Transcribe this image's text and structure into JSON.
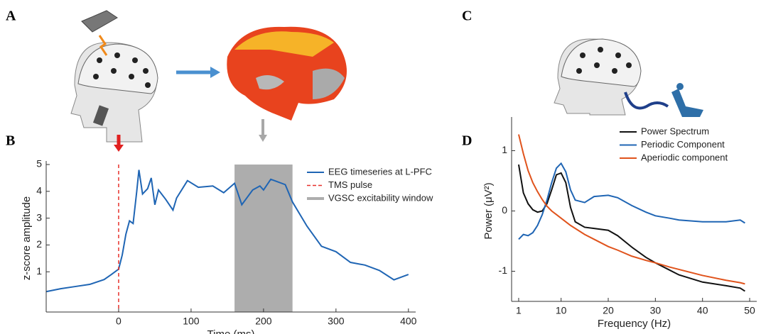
{
  "panel_labels": [
    "A",
    "B",
    "C",
    "D"
  ],
  "chart_data": [
    {
      "type": "line",
      "xlabel": "Time (ms)",
      "ylabel": "z-score amplitude",
      "xlim": [
        -100,
        410
      ],
      "ylim": [
        -0.5,
        5
      ],
      "xticks": [
        0,
        100,
        200,
        300,
        400
      ],
      "yticks": [
        1,
        2,
        3,
        4,
        5
      ],
      "x": [
        -100,
        -80,
        -60,
        -40,
        -20,
        -10,
        0,
        5,
        10,
        15,
        20,
        25,
        28,
        33,
        40,
        45,
        50,
        55,
        65,
        75,
        80,
        95,
        110,
        130,
        145,
        160,
        170,
        185,
        195,
        200,
        210,
        230,
        240,
        260,
        280,
        300,
        320,
        340,
        360,
        380,
        390,
        400
      ],
      "series": [
        {
          "name": "EEG timeseries at L-PFC",
          "color": "#1f65b4",
          "values": [
            0.26,
            0.37,
            0.45,
            0.53,
            0.71,
            0.9,
            1.1,
            1.63,
            2.4,
            2.9,
            2.8,
            4.0,
            4.8,
            3.9,
            4.1,
            4.5,
            3.5,
            4.05,
            3.7,
            3.3,
            3.75,
            4.4,
            4.15,
            4.2,
            3.95,
            4.3,
            3.5,
            4.05,
            4.2,
            4.05,
            4.45,
            4.25,
            3.6,
            2.7,
            1.95,
            1.75,
            1.35,
            1.25,
            1.05,
            0.7,
            0.8,
            0.9
          ]
        }
      ],
      "pulse": {
        "name": "TMS pulse",
        "x": 0,
        "color": "#e8302a"
      },
      "window": {
        "name": "VGSC excitability window",
        "x": [
          160,
          240
        ],
        "color": "#adadad"
      }
    },
    {
      "type": "line",
      "xlabel": "Frequency (Hz)",
      "ylabel": "Power (μV²)",
      "xlim": [
        -0.5,
        51.5
      ],
      "ylim": [
        -1.5,
        1.5
      ],
      "xticks": [
        1,
        10,
        20,
        30,
        40,
        50
      ],
      "yticks": [
        -1,
        0,
        1
      ],
      "x": [
        1,
        2,
        3,
        4,
        5,
        6,
        7,
        8,
        9,
        10,
        11,
        12,
        13,
        15,
        17,
        20,
        22,
        25,
        28,
        30,
        33,
        35,
        40,
        45,
        48,
        49
      ],
      "series": [
        {
          "name": "Power Spectrum",
          "color": "#111111",
          "values": [
            0.77,
            0.3,
            0.12,
            0.02,
            -0.02,
            0,
            0.12,
            0.35,
            0.6,
            0.63,
            0.47,
            0.06,
            -0.18,
            -0.27,
            -0.29,
            -0.32,
            -0.41,
            -0.6,
            -0.77,
            -0.86,
            -0.98,
            -1.06,
            -1.18,
            -1.24,
            -1.28,
            -1.33
          ]
        },
        {
          "name": "Periodic Component",
          "color": "#1f65b4",
          "values": [
            -0.47,
            -0.39,
            -0.41,
            -0.36,
            -0.24,
            -0.06,
            0.18,
            0.47,
            0.71,
            0.79,
            0.65,
            0.35,
            0.18,
            0.14,
            0.24,
            0.26,
            0.22,
            0.09,
            -0.02,
            -0.08,
            -0.12,
            -0.15,
            -0.18,
            -0.18,
            -0.15,
            -0.2
          ]
        },
        {
          "name": "Aperiodic component",
          "color": "#e0531c",
          "values": [
            1.27,
            0.95,
            0.67,
            0.47,
            0.32,
            0.19,
            0.08,
            0,
            -0.06,
            -0.12,
            -0.18,
            -0.24,
            -0.29,
            -0.39,
            -0.47,
            -0.59,
            -0.65,
            -0.75,
            -0.82,
            -0.86,
            -0.93,
            -0.97,
            -1.07,
            -1.15,
            -1.19,
            -1.21
          ]
        }
      ]
    }
  ]
}
